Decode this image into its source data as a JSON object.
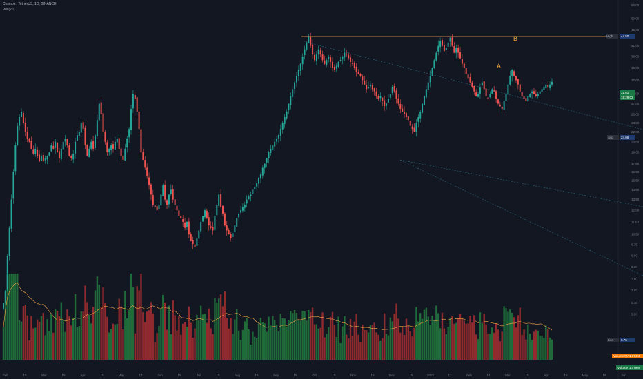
{
  "header": {
    "symbol": "Cosmos / TetherUS, 1D, BINANCE",
    "indicator": "Vol (20)"
  },
  "colors": {
    "background": "#131722",
    "up": "#26a69a",
    "down": "#ef5350",
    "vol_up": "#1f6b3a",
    "vol_down": "#8f2a2e",
    "accent": "#f7a744",
    "channel": "#2a6a7e"
  },
  "annotations": {
    "label_a": "A",
    "label_b": "B"
  },
  "price_tags": {
    "high_label": "High",
    "high_value": "44.50",
    "last_value": "31.61",
    "countdown": "19:29:02",
    "avg_label": "Avg",
    "avg_value": "24.06",
    "low_label": "Low",
    "low_value": "6.76",
    "vol_ma_label": "Volume MA",
    "vol_ma_value": "1.374M",
    "volume_label": "Volume",
    "volume_value": "1.079M"
  },
  "chart_data": {
    "type": "candlestick",
    "title": "Cosmos / TetherUS, 1D, BINANCE",
    "indicator": "Vol (20)",
    "y_ticks": [
      "55.00",
      "50.00",
      "46.00",
      "41.00",
      "38.00",
      "35.00",
      "32.00",
      "29.00",
      "27.00",
      "25.00",
      "23.50",
      "22.00",
      "20.50",
      "19.00",
      "17.50",
      "16.50",
      "15.50",
      "14.50",
      "13.50",
      "12.50",
      "11.50",
      "10.50",
      "9.75",
      "9.00",
      "8.30",
      "7.60",
      "7.00",
      "6.40",
      "5.90"
    ],
    "x_ticks": [
      "Feb",
      "15",
      "Mar",
      "15",
      "Apr",
      "15",
      "May",
      "17",
      "Jun",
      "15",
      "Jul",
      "15",
      "Aug",
      "16",
      "Sep",
      "15",
      "Oct",
      "15",
      "Nov",
      "15",
      "Dec",
      "15",
      "2022",
      "17",
      "Feb",
      "14",
      "Mar",
      "15",
      "Apr",
      "15",
      "May",
      "16",
      "Jun"
    ],
    "ylim": [
      5.5,
      56
    ],
    "series_closes": [
      6.4,
      7.0,
      9.0,
      11.0,
      13.5,
      16.5,
      20.0,
      23.0,
      24.5,
      25.5,
      23.5,
      22.0,
      21.0,
      20.5,
      19.5,
      18.8,
      19.5,
      18.5,
      17.8,
      18.5,
      17.8,
      18.2,
      18.5,
      19.0,
      20.0,
      19.5,
      20.5,
      19.0,
      18.2,
      19.5,
      20.5,
      21.0,
      20.0,
      18.5,
      18.2,
      18.8,
      20.5,
      21.5,
      22.0,
      23.5,
      22.5,
      20.0,
      18.5,
      19.5,
      20.5,
      19.5,
      21.5,
      24.0,
      27.0,
      25.0,
      22.0,
      20.5,
      19.0,
      19.5,
      20.0,
      19.5,
      20.5,
      21.0,
      19.5,
      18.5,
      18.0,
      19.5,
      21.0,
      22.5,
      26.0,
      29.0,
      28.0,
      25.5,
      22.5,
      19.0,
      18.0,
      17.0,
      16.0,
      15.0,
      14.0,
      13.0,
      12.8,
      12.5,
      13.0,
      14.0,
      15.0,
      13.5,
      13.0,
      14.0,
      14.5,
      13.5,
      13.0,
      12.5,
      12.0,
      11.8,
      11.5,
      11.0,
      11.5,
      10.5,
      10.0,
      9.8,
      9.6,
      10.2,
      10.8,
      11.5,
      12.0,
      12.5,
      11.8,
      11.2,
      11.0,
      10.8,
      12.0,
      13.0,
      14.0,
      12.8,
      12.2,
      11.2,
      10.8,
      10.5,
      10.2,
      10.6,
      11.2,
      11.8,
      12.2,
      12.5,
      12.8,
      13.0,
      13.5,
      13.8,
      14.0,
      14.5,
      14.8,
      15.2,
      15.8,
      16.2,
      17.0,
      17.5,
      18.2,
      19.0,
      19.5,
      20.0,
      20.5,
      21.0,
      21.5,
      22.5,
      23.5,
      24.5,
      25.5,
      27.0,
      28.5,
      30.0,
      31.5,
      33.0,
      34.5,
      36.0,
      38.0,
      40.0,
      42.0,
      44.0,
      41.0,
      38.5,
      37.0,
      38.5,
      40.0,
      38.5,
      37.0,
      36.0,
      37.0,
      38.0,
      36.5,
      35.0,
      34.5,
      35.5,
      36.5,
      37.0,
      38.0,
      39.0,
      38.5,
      37.5,
      36.5,
      36.0,
      35.0,
      34.0,
      33.5,
      33.0,
      32.0,
      31.0,
      30.0,
      30.5,
      31.0,
      30.0,
      29.5,
      28.5,
      28.0,
      28.5,
      27.5,
      26.5,
      27.0,
      28.0,
      29.0,
      30.5,
      29.5,
      28.0,
      27.0,
      26.0,
      25.5,
      25.0,
      24.5,
      24.0,
      23.0,
      22.5,
      22.0,
      23.5,
      24.5,
      25.5,
      27.0,
      28.5,
      30.0,
      31.5,
      33.0,
      35.0,
      37.0,
      39.0,
      41.0,
      42.5,
      41.0,
      39.5,
      40.5,
      42.0,
      43.5,
      41.0,
      39.0,
      40.5,
      39.0,
      37.5,
      36.0,
      35.0,
      33.5,
      32.5,
      31.5,
      30.5,
      29.5,
      28.5,
      29.0,
      30.5,
      31.5,
      30.0,
      28.5,
      28.0,
      29.0,
      30.0,
      29.5,
      28.0,
      27.0,
      26.5,
      26.0,
      27.5,
      29.0,
      31.0,
      33.0,
      34.5,
      33.0,
      32.0,
      31.0,
      29.5,
      28.5,
      28.0,
      27.5,
      28.5,
      29.0,
      29.5,
      29.0,
      28.5,
      29.0,
      29.5,
      30.0,
      30.5,
      31.0,
      30.5,
      31.0,
      31.61
    ],
    "resistance_high": 44.5,
    "last_price": 31.61,
    "average": 24.06,
    "low": 6.76,
    "volume_ma": "1.374M",
    "volume": "1.079M"
  }
}
